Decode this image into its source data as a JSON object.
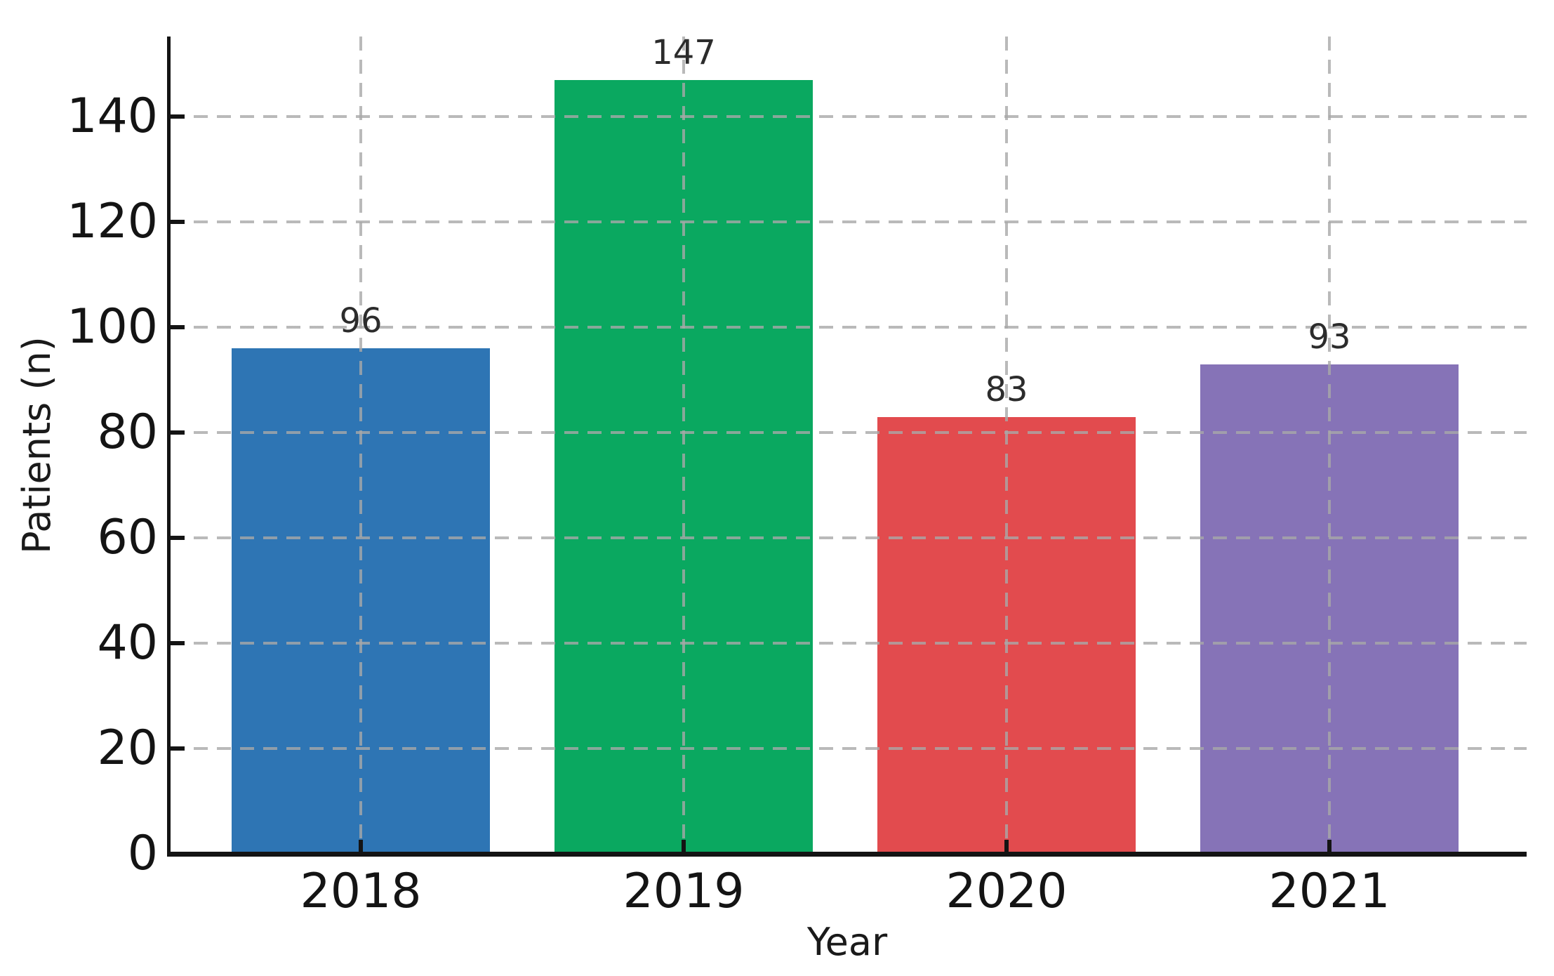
{
  "chart_data": {
    "type": "bar",
    "title": "",
    "xlabel": "Year",
    "ylabel": "Patients (n)",
    "categories": [
      "2018",
      "2019",
      "2020",
      "2021"
    ],
    "values": [
      96,
      147,
      83,
      93
    ],
    "value_labels": [
      "96",
      "147",
      "83",
      "93"
    ],
    "bar_colors": [
      "#2e75b4",
      "#0aa860",
      "#e24b4e",
      "#8673b7"
    ],
    "yticks": [
      0,
      20,
      40,
      60,
      80,
      100,
      120,
      140
    ],
    "ytick_labels": [
      "0",
      "20",
      "40",
      "60",
      "80",
      "100",
      "120",
      "140"
    ],
    "ylim": [
      0,
      155
    ],
    "grid": "dashed gray, horizontal and vertical",
    "legend_position": "none",
    "spine_color": "#141414"
  }
}
